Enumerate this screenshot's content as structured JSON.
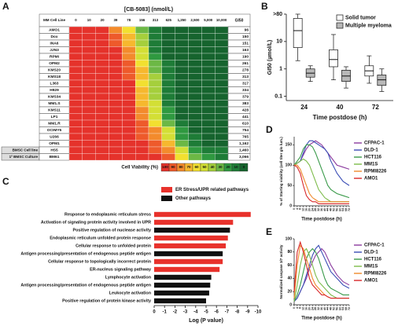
{
  "chart_data": [
    {
      "type": "heatmap",
      "panel_label": "A",
      "title": "[CB-5083] (nmol/L)",
      "row_header": "MM Cell Line",
      "value_header": "GI50",
      "columns": [
        0,
        10,
        20,
        39,
        78,
        156,
        313,
        625,
        {
          "value": 1250,
          "label": "1,250"
        },
        {
          "value": 2500,
          "label": "2,500"
        },
        {
          "value": 5000,
          "label": "5,000"
        },
        {
          "value": 10000,
          "label": "10,000"
        }
      ],
      "rows": [
        {
          "name": "AMO1",
          "gi50": 96,
          "values": [
            100,
            100,
            100,
            80,
            60,
            30,
            10,
            0,
            0,
            0,
            0,
            0
          ]
        },
        {
          "name": "Dox",
          "gi50": 150,
          "values": [
            100,
            100,
            100,
            90,
            70,
            40,
            10,
            0,
            0,
            0,
            0,
            0
          ]
        },
        {
          "name": "INA6",
          "gi50": 151,
          "values": [
            100,
            100,
            100,
            90,
            70,
            40,
            10,
            0,
            0,
            0,
            0,
            0
          ]
        },
        {
          "name": "JJN3",
          "gi50": 163,
          "values": [
            100,
            100,
            100,
            100,
            80,
            50,
            10,
            0,
            0,
            0,
            0,
            0
          ]
        },
        {
          "name": "RPMI",
          "gi50": 190,
          "values": [
            100,
            100,
            100,
            100,
            80,
            50,
            20,
            0,
            0,
            0,
            0,
            0
          ]
        },
        {
          "name": "OPM2",
          "gi50": 261,
          "values": [
            100,
            100,
            100,
            100,
            90,
            60,
            30,
            10,
            0,
            0,
            0,
            0
          ]
        },
        {
          "name": "KMS20",
          "gi50": 278,
          "values": [
            100,
            100,
            100,
            100,
            90,
            70,
            30,
            10,
            0,
            0,
            0,
            0
          ]
        },
        {
          "name": "KMS18",
          "gi50": 313,
          "values": [
            100,
            100,
            100,
            100,
            90,
            70,
            40,
            10,
            0,
            0,
            0,
            0
          ]
        },
        {
          "name": "L363",
          "gi50": 317,
          "values": [
            100,
            100,
            100,
            100,
            100,
            60,
            40,
            10,
            0,
            0,
            0,
            0
          ]
        },
        {
          "name": "H929",
          "gi50": 334,
          "values": [
            100,
            100,
            100,
            100,
            100,
            70,
            40,
            10,
            0,
            0,
            0,
            0
          ]
        },
        {
          "name": "KMS34",
          "gi50": 379,
          "values": [
            100,
            100,
            100,
            100,
            100,
            70,
            40,
            10,
            0,
            0,
            0,
            0
          ]
        },
        {
          "name": "MM1.S",
          "gi50": 383,
          "values": [
            100,
            100,
            100,
            100,
            100,
            70,
            50,
            10,
            0,
            0,
            0,
            0
          ]
        },
        {
          "name": "KMS11",
          "gi50": 428,
          "values": [
            100,
            100,
            100,
            100,
            100,
            80,
            50,
            20,
            0,
            0,
            0,
            0
          ]
        },
        {
          "name": "LP1",
          "gi50": 441,
          "values": [
            100,
            100,
            100,
            100,
            100,
            80,
            50,
            20,
            0,
            0,
            0,
            0
          ]
        },
        {
          "name": "MM1.R",
          "gi50": 610,
          "values": [
            100,
            100,
            100,
            100,
            100,
            90,
            60,
            30,
            10,
            0,
            0,
            0
          ]
        },
        {
          "name": "OCIMY5",
          "gi50": 754,
          "values": [
            100,
            100,
            100,
            100,
            100,
            90,
            80,
            50,
            20,
            0,
            0,
            0
          ]
        },
        {
          "name": "U266",
          "gi50": 765,
          "values": [
            100,
            100,
            100,
            100,
            100,
            90,
            80,
            50,
            20,
            10,
            0,
            0
          ]
        },
        {
          "name": "OPM1",
          "gi50": {
            "value": 1162,
            "label": "1,162"
          },
          "values": [
            100,
            100,
            100,
            100,
            100,
            100,
            90,
            70,
            30,
            10,
            0,
            0
          ]
        },
        {
          "group": "BMSC Cell line",
          "name": "HS5",
          "gi50": {
            "value": 1460,
            "label": "1,460"
          },
          "values": [
            100,
            100,
            100,
            100,
            100,
            100,
            90,
            80,
            50,
            20,
            10,
            10
          ]
        },
        {
          "group": "1º BMSC Culture",
          "name": "BM61",
          "gi50": {
            "value": 3066,
            "label": "3,066"
          },
          "values": [
            100,
            100,
            100,
            100,
            100,
            100,
            100,
            90,
            60,
            30,
            20,
            10
          ]
        }
      ],
      "colorbar": {
        "label": "Cell Viability (%)",
        "values": [
          100,
          90,
          80,
          70,
          60,
          50,
          40,
          30,
          20,
          10,
          0
        ],
        "colors": [
          "#e5322b",
          "#ee5a2b",
          "#f38b2c",
          "#f6b82e",
          "#f2e030",
          "#d3df35",
          "#a5cf3c",
          "#6cb845",
          "#2f9940",
          "#1e7c37",
          "#16642e"
        ]
      }
    },
    {
      "type": "box",
      "panel_label": "B",
      "x_label": "Time postdose (h)",
      "y_label": "GI50 (µmol/L)",
      "categories": [
        24,
        40,
        72
      ],
      "log_y": true,
      "ylim": [
        0.07,
        100
      ],
      "yticks": [
        0.1,
        1,
        10,
        {
          "value": 100,
          "label": ">80"
        }
      ],
      "legend": "top-right",
      "series": [
        {
          "name": "Solid tumor",
          "color": "#ffffff",
          "boxes": [
            {
              "min": 2,
              "q1": 6,
              "median": 25,
              "q3": 70,
              "max": 100
            },
            {
              "min": 0.4,
              "q1": 1.2,
              "median": 2.2,
              "q3": 5,
              "max": 18
            },
            {
              "min": 0.3,
              "q1": 0.55,
              "median": 0.85,
              "q3": 1.3,
              "max": 3
            }
          ]
        },
        {
          "name": "Multiple myeloma",
          "color": "#b8b8b8",
          "boxes": [
            {
              "min": 0.35,
              "q1": 0.5,
              "median": 0.7,
              "q3": 1.0,
              "max": 1.3
            },
            {
              "min": 0.2,
              "q1": 0.35,
              "median": 0.55,
              "q3": 0.9,
              "max": 1.2
            },
            {
              "min": 0.15,
              "q1": 0.25,
              "median": 0.4,
              "q3": 0.6,
              "max": 1.0
            }
          ]
        }
      ]
    },
    {
      "type": "hbar",
      "panel_label": "C",
      "x_label": "Log (P value)",
      "xlim": [
        0,
        -10
      ],
      "xticks": [
        0,
        -1,
        -2,
        -3,
        -4,
        -5,
        -6,
        -7,
        -8,
        -9,
        -10
      ],
      "legend_items": [
        {
          "name": "ER Stress/UPR related pathways",
          "color": "#e8322c"
        },
        {
          "name": "Other pathways",
          "color": "#111111"
        }
      ],
      "categories": [
        "Response to endoplasmic reticulum stress",
        "Activation of signaling protein activity involved in UPR",
        "Positive regulation of nuclease activity",
        "Endoplasmic reticulum unfolded protein response",
        "Cellular response to unfolded protein",
        "Antigen processing/presentation of endogenous peptide antigen",
        "Cellular response to topologically incorrect protein",
        "ER-nucleus signaling pathway",
        "Lymphocyte activation",
        "Antigen processing/presentation of endogenous peptide antigen",
        "Leukocyte activation",
        "Positive regulation of protein kinase activity"
      ],
      "values": [
        -9.3,
        -7.6,
        -7.3,
        -7.1,
        -6.9,
        -6.6,
        -6.6,
        -6.3,
        -5.5,
        -5.4,
        -5.3,
        -5.0
      ],
      "colors": [
        "#e8322c",
        "#e8322c",
        "#111111",
        "#e8322c",
        "#e8322c",
        "#111111",
        "#e8322c",
        "#e8322c",
        "#111111",
        "#111111",
        "#111111",
        "#111111"
      ]
    },
    {
      "type": "line",
      "panel_label": "D",
      "x_label": "Time postdose (h)",
      "y_label": "% of Starting viability (cell titer glo lum.)",
      "x": [
        0,
        4,
        8,
        12,
        16,
        20,
        24,
        28,
        32,
        36,
        40,
        44,
        48,
        56,
        64,
        72
      ],
      "xlim": [
        0,
        72
      ],
      "xticks": [
        0,
        4,
        8,
        12,
        16,
        20,
        24,
        28,
        32,
        36,
        40,
        44,
        48,
        52,
        56,
        60,
        64,
        68,
        72
      ],
      "ylim": [
        0,
        170
      ],
      "yticks": [
        0,
        50,
        100,
        150
      ],
      "series": [
        {
          "name": "CFPAC-1",
          "color": "#8b3a9e",
          "values": [
            100,
            105,
            110,
            125,
            140,
            150,
            155,
            160,
            155,
            150,
            140,
            130,
            120,
            100,
            95,
            90
          ]
        },
        {
          "name": "DLD-1",
          "color": "#3a4db5",
          "values": [
            100,
            105,
            110,
            130,
            150,
            160,
            160,
            155,
            150,
            145,
            140,
            130,
            110,
            80,
            60,
            50
          ]
        },
        {
          "name": "HCT116",
          "color": "#3a9a4a",
          "values": [
            100,
            110,
            120,
            140,
            150,
            150,
            145,
            130,
            110,
            90,
            70,
            50,
            40,
            30,
            25,
            20
          ]
        },
        {
          "name": "MM1S",
          "color": "#7dbb4a",
          "values": [
            100,
            105,
            110,
            115,
            110,
            100,
            80,
            60,
            40,
            30,
            20,
            15,
            10,
            10,
            10,
            10
          ]
        },
        {
          "name": "RPMI8226",
          "color": "#ef8a2c",
          "values": [
            100,
            100,
            90,
            70,
            50,
            30,
            20,
            15,
            10,
            10,
            10,
            10,
            10,
            10,
            10,
            10
          ]
        },
        {
          "name": "AMO1",
          "color": "#d8282a",
          "values": [
            100,
            95,
            80,
            50,
            25,
            15,
            10,
            10,
            5,
            5,
            5,
            5,
            5,
            5,
            5,
            5
          ]
        }
      ]
    },
    {
      "type": "line",
      "panel_label": "E",
      "x_label": "Time postdose (h)",
      "y_label": "Normalized caspase 3/7 activity",
      "x": [
        0,
        4,
        8,
        12,
        16,
        20,
        24,
        28,
        32,
        36,
        40,
        44,
        48,
        56,
        64,
        72
      ],
      "xlim": [
        0,
        72
      ],
      "xticks": [
        0,
        4,
        8,
        12,
        16,
        20,
        24,
        28,
        32,
        36,
        40,
        44,
        48,
        52,
        56,
        60,
        64,
        68,
        72
      ],
      "ylim": [
        0,
        100
      ],
      "yticks": [
        0,
        20,
        40,
        60,
        80,
        100
      ],
      "series": [
        {
          "name": "CFPAC-1",
          "color": "#8b3a9e",
          "values": [
            5,
            10,
            20,
            30,
            40,
            55,
            65,
            75,
            80,
            85,
            80,
            70,
            60,
            45,
            35,
            30
          ]
        },
        {
          "name": "DLD-1",
          "color": "#3a4db5",
          "values": [
            5,
            10,
            20,
            30,
            45,
            60,
            75,
            85,
            90,
            80,
            70,
            60,
            50,
            40,
            30,
            25
          ]
        },
        {
          "name": "HCT116",
          "color": "#3a9a4a",
          "values": [
            5,
            15,
            30,
            50,
            70,
            80,
            85,
            80,
            70,
            55,
            40,
            30,
            25,
            20,
            15,
            15
          ]
        },
        {
          "name": "MM1S",
          "color": "#7dbb4a",
          "values": [
            5,
            30,
            60,
            80,
            85,
            75,
            60,
            45,
            35,
            30,
            25,
            20,
            15,
            10,
            10,
            10
          ]
        },
        {
          "name": "RPMI8226",
          "color": "#ef8a2c",
          "values": [
            10,
            60,
            90,
            85,
            70,
            55,
            40,
            30,
            25,
            20,
            15,
            12,
            10,
            10,
            10,
            10
          ]
        },
        {
          "name": "AMO1",
          "color": "#d8282a",
          "values": [
            20,
            80,
            95,
            80,
            60,
            40,
            30,
            25,
            20,
            15,
            15,
            12,
            10,
            10,
            10,
            10
          ]
        }
      ]
    }
  ]
}
